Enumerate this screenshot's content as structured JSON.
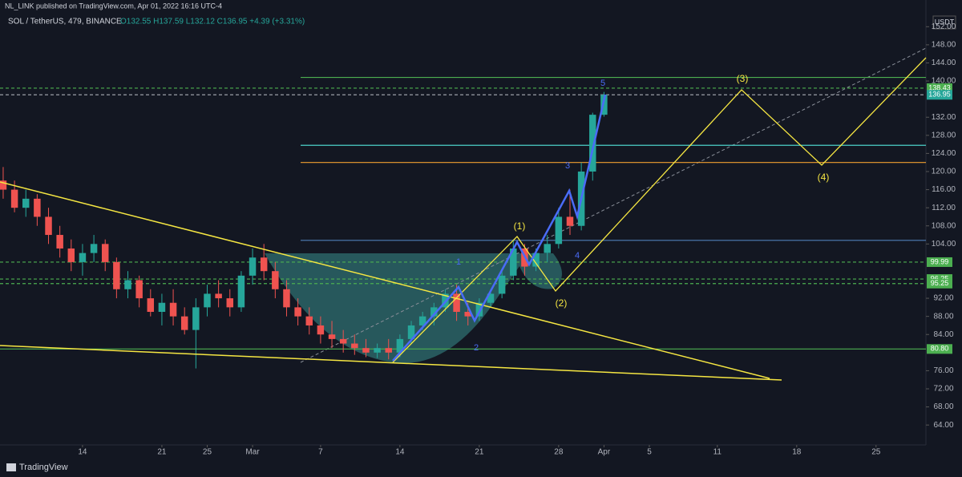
{
  "header": {
    "publisher": "NL_LINK published on TradingView.com, Apr 01, 2022 16:16 UTC-4",
    "symbol": "SOL / TetherUS, 479, BINANCE",
    "ohlc": "O132.55 H137.59 L132.12 C136.95 +4.39 (+3.31%)",
    "currency": "USDT",
    "brand": "TradingView"
  },
  "chart_data": {
    "type": "candlestick",
    "x": [
      7,
      8,
      9,
      10,
      11,
      12,
      13,
      14,
      15,
      16,
      17,
      18,
      19,
      20,
      21,
      22,
      23,
      24,
      25,
      26,
      27,
      28,
      29,
      30,
      31,
      32,
      33,
      34,
      35,
      36,
      37,
      38,
      39,
      40,
      41,
      42,
      43,
      44,
      45,
      46,
      47,
      48,
      49,
      50,
      51,
      52,
      53,
      54,
      55,
      56,
      57,
      58,
      59,
      60
    ],
    "open": [
      118,
      116,
      112,
      114,
      110,
      106,
      103,
      100,
      102,
      104,
      100,
      94,
      96,
      92,
      89,
      91,
      88,
      85,
      90,
      93,
      92,
      90,
      97,
      101,
      98,
      94,
      90,
      88,
      86,
      84,
      83,
      82,
      81,
      80,
      81,
      80,
      83,
      86,
      88,
      90,
      93,
      89,
      88,
      91,
      93,
      97,
      103,
      99,
      102,
      104,
      110,
      108,
      120,
      132.55
    ],
    "high": [
      121,
      118,
      116,
      115,
      112,
      108,
      105,
      104,
      106,
      105,
      101,
      98,
      97,
      94,
      93,
      94,
      90,
      92,
      95,
      96,
      94,
      98,
      103,
      104,
      100,
      96,
      92,
      90,
      88,
      87,
      85,
      84,
      83,
      82,
      83,
      84,
      87,
      89,
      91,
      94,
      95,
      91,
      92,
      94,
      98,
      105,
      104,
      103,
      106,
      112,
      116,
      122,
      133,
      137.59
    ],
    "low": [
      114,
      111,
      110,
      108,
      104,
      101,
      98,
      97,
      100,
      98,
      92,
      92,
      90,
      88,
      86,
      86,
      84,
      76.5,
      88,
      90,
      88,
      89,
      95,
      96,
      92,
      88,
      86,
      84,
      82,
      81,
      80,
      79.5,
      79,
      78.8,
      78.5,
      79,
      82,
      85,
      86,
      89,
      87,
      86,
      87,
      90,
      92,
      96,
      97,
      98,
      100,
      103,
      106,
      107,
      118,
      132.12
    ],
    "close": [
      116,
      112,
      114,
      110,
      106,
      103,
      100,
      102,
      104,
      100,
      94,
      96,
      92,
      89,
      91,
      88,
      85,
      90,
      93,
      92,
      90,
      97,
      101,
      98,
      94,
      90,
      88,
      86,
      84,
      83,
      82,
      81,
      80,
      81,
      80,
      83,
      86,
      88,
      90,
      93,
      89,
      88,
      91,
      93,
      97,
      103,
      99,
      102,
      104,
      110,
      108,
      120,
      132.55,
      136.95
    ],
    "up_color": "#26a69a",
    "down_color": "#ef5350",
    "xlim": [
      6.72,
      88.4
    ],
    "ylim": [
      59.6,
      157.9
    ],
    "xticks": [
      {
        "value": 14,
        "label": "14"
      },
      {
        "value": 21,
        "label": "21"
      },
      {
        "value": 25,
        "label": "25"
      },
      {
        "value": 29,
        "label": "Mar"
      },
      {
        "value": 35,
        "label": "7"
      },
      {
        "value": 42,
        "label": "14"
      },
      {
        "value": 49,
        "label": "21"
      },
      {
        "value": 56,
        "label": "28"
      },
      {
        "value": 60,
        "label": "Apr"
      },
      {
        "value": 64,
        "label": "5"
      },
      {
        "value": 70,
        "label": "11"
      },
      {
        "value": 77,
        "label": "18"
      },
      {
        "value": 84,
        "label": "25"
      }
    ],
    "yticks": [
      {
        "value": 152,
        "label": "152.00"
      },
      {
        "value": 148,
        "label": "148.00"
      },
      {
        "value": 144,
        "label": "144.00"
      },
      {
        "value": 140,
        "label": "140.00"
      },
      {
        "value": 132,
        "label": "132.00"
      },
      {
        "value": 128,
        "label": "128.00"
      },
      {
        "value": 124,
        "label": "124.00"
      },
      {
        "value": 120,
        "label": "120.00"
      },
      {
        "value": 116,
        "label": "116.00"
      },
      {
        "value": 112,
        "label": "112.00"
      },
      {
        "value": 108,
        "label": "108.00"
      },
      {
        "value": 104,
        "label": "104.00"
      },
      {
        "value": 92,
        "label": "92.00"
      },
      {
        "value": 88,
        "label": "88.00"
      },
      {
        "value": 84,
        "label": "84.00"
      },
      {
        "value": 76,
        "label": "76.00"
      },
      {
        "value": 72,
        "label": "72.00"
      },
      {
        "value": 68,
        "label": "68.00"
      },
      {
        "value": 64,
        "label": "64.00"
      }
    ],
    "levels": [
      {
        "value": 140.8,
        "color": "#4caf50",
        "dash": false,
        "start": 375
      },
      {
        "value": 138.43,
        "color": "#4caf50",
        "dash": true,
        "tag": true
      },
      {
        "value": 136.95,
        "color": "#9aa0a6",
        "dash": true,
        "tag": true,
        "tag_color": "#26a69a"
      },
      {
        "value": 125.8,
        "color": "#4dd0c8",
        "dash": false,
        "start": 375
      },
      {
        "value": 122,
        "color": "#f0a030",
        "dash": false,
        "start": 375
      },
      {
        "value": 104.8,
        "color": "#4f7fb8",
        "dash": false,
        "start": 375
      },
      {
        "value": 99.99,
        "color": "#4caf50",
        "dash": true,
        "tag": true
      },
      {
        "value": 96.25,
        "color": "#4caf50",
        "dash": true,
        "tag": true
      },
      {
        "value": 95.25,
        "color": "#4caf50",
        "dash": true,
        "tag": true
      },
      {
        "value": 80.8,
        "label": "80.80",
        "color": "#4caf50",
        "dash": false,
        "tag": true
      }
    ],
    "annotations": {
      "w1": "(1)",
      "w2": "(2)",
      "w3": "(3)",
      "w4": "(4)",
      "b1": "1",
      "b2": "2",
      "b3": "3",
      "b4": "4",
      "b5": "5"
    }
  }
}
